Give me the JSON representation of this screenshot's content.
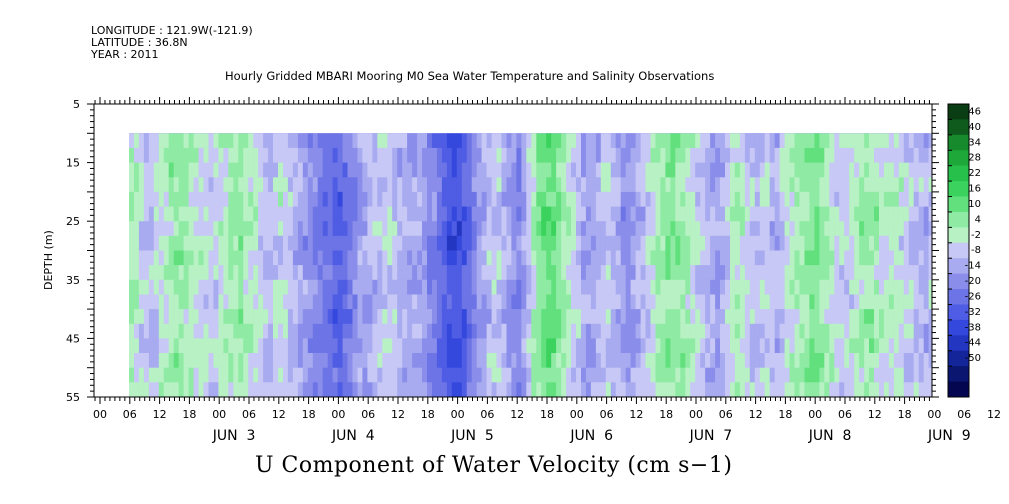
{
  "header": {
    "longitude": "LONGITUDE : 121.9W(-121.9)",
    "latitude": "LATITUDE : 36.8N",
    "year": "YEAR : 2011"
  },
  "chart_data": {
    "type": "heatmap",
    "title": "Hourly Gridded MBARI Mooring M0 Sea Water Temperature and Salinity Observations",
    "bottom_title": "U Component of Water Velocity (cm s−1)",
    "ylabel": "DEPTH (m)",
    "ylim": [
      5,
      55
    ],
    "y_inverted": true,
    "y_ticks": [
      5,
      15,
      25,
      35,
      45,
      55
    ],
    "data_depth_range": [
      10,
      55
    ],
    "x_tick_labels": [
      "00",
      "06",
      "12",
      "18",
      "00",
      "06",
      "12",
      "18",
      "00",
      "06",
      "12",
      "18",
      "00",
      "06",
      "12",
      "18",
      "00",
      "06",
      "12",
      "18",
      "00",
      "06",
      "12",
      "18",
      "00",
      "06",
      "12",
      "18",
      "00",
      "06",
      "12",
      "18"
    ],
    "x_day_labels": [
      "JUN  3",
      "JUN  4",
      "JUN  5",
      "JUN  6",
      "JUN  7",
      "JUN  8",
      "JUN  9"
    ],
    "colorbar": {
      "labels": [
        "46",
        "40",
        "34",
        "28",
        "22",
        "16",
        "10",
        "4",
        "-2",
        "-8",
        "-14",
        "-20",
        "-26",
        "-32",
        "-38",
        "-44",
        "-50"
      ],
      "range": [
        -50,
        52
      ]
    },
    "time_profile": [
      [
        0,
        -6
      ],
      [
        2,
        2
      ],
      [
        4,
        -4
      ],
      [
        6,
        4
      ],
      [
        8,
        -3
      ],
      [
        10,
        -8
      ],
      [
        12,
        -2
      ],
      [
        14,
        2
      ],
      [
        16,
        6
      ],
      [
        18,
        3
      ],
      [
        20,
        -2
      ],
      [
        22,
        -6
      ],
      [
        24,
        -2
      ],
      [
        26,
        3
      ],
      [
        28,
        6
      ],
      [
        30,
        2
      ],
      [
        32,
        -4
      ],
      [
        34,
        -8
      ],
      [
        36,
        -2
      ],
      [
        38,
        -6
      ],
      [
        40,
        -10
      ],
      [
        42,
        -16
      ],
      [
        44,
        -20
      ],
      [
        46,
        -24
      ],
      [
        48,
        -28
      ],
      [
        50,
        -22
      ],
      [
        52,
        -14
      ],
      [
        54,
        -10
      ],
      [
        56,
        -6
      ],
      [
        58,
        -3
      ],
      [
        60,
        -8
      ],
      [
        62,
        -12
      ],
      [
        64,
        -10
      ],
      [
        66,
        -16
      ],
      [
        68,
        -22
      ],
      [
        70,
        -30
      ],
      [
        72,
        -34
      ],
      [
        74,
        -26
      ],
      [
        76,
        -16
      ],
      [
        78,
        -8
      ],
      [
        80,
        -4
      ],
      [
        82,
        -12
      ],
      [
        84,
        -20
      ],
      [
        86,
        -8
      ],
      [
        88,
        8
      ],
      [
        90,
        14
      ],
      [
        92,
        10
      ],
      [
        94,
        2
      ],
      [
        96,
        -6
      ],
      [
        98,
        -14
      ],
      [
        100,
        -10
      ],
      [
        102,
        -4
      ],
      [
        104,
        -10
      ],
      [
        106,
        -16
      ],
      [
        108,
        -12
      ],
      [
        110,
        -6
      ],
      [
        112,
        2
      ],
      [
        114,
        6
      ],
      [
        116,
        8
      ],
      [
        118,
        4
      ],
      [
        120,
        -2
      ],
      [
        122,
        -8
      ],
      [
        124,
        -14
      ],
      [
        126,
        -6
      ],
      [
        128,
        4
      ],
      [
        130,
        -2
      ],
      [
        132,
        -8
      ],
      [
        134,
        -4
      ],
      [
        136,
        -10
      ],
      [
        138,
        -4
      ],
      [
        140,
        2
      ],
      [
        142,
        6
      ],
      [
        144,
        10
      ],
      [
        146,
        4
      ],
      [
        148,
        -2
      ],
      [
        150,
        -6
      ],
      [
        152,
        0
      ],
      [
        154,
        6
      ],
      [
        156,
        4
      ],
      [
        158,
        -2
      ],
      [
        160,
        2
      ],
      [
        162,
        -4
      ],
      [
        164,
        -6
      ],
      [
        166,
        -10
      ],
      [
        168,
        -6
      ],
      [
        170,
        0
      ],
      [
        172,
        -2
      ],
      [
        174,
        4
      ],
      [
        176,
        6
      ]
    ]
  }
}
